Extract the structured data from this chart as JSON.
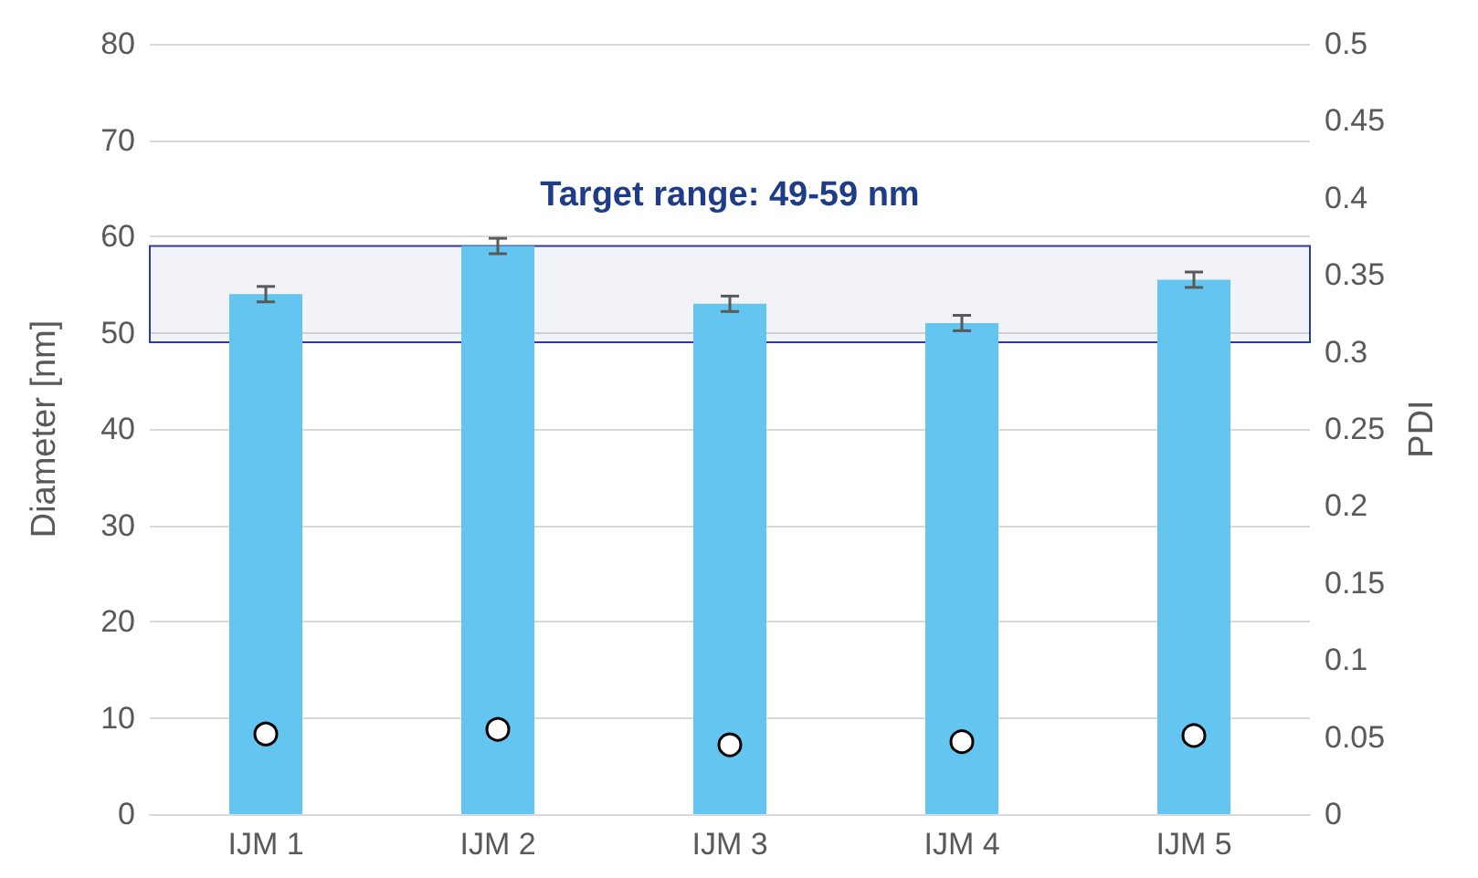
{
  "chart_data": {
    "type": "bar",
    "categories": [
      "IJM 1",
      "IJM 2",
      "IJM 3",
      "IJM 4",
      "IJM 5"
    ],
    "series": [
      {
        "color": "#63c5f0",
        "values": [
          54,
          59,
          53,
          51,
          55.5
        ],
        "errors": [
          0.8,
          0.8,
          0.8,
          0.8,
          0.8
        ]
      },
      {
        "type": "scatter",
        "axis": "y2",
        "color": "#ffffff",
        "values": [
          0.052,
          0.055,
          0.045,
          0.047,
          0.051
        ],
        "marker": "circle"
      }
    ],
    "ylabel": "Diameter [nm]",
    "y2label": "PDI",
    "ylim": [
      0,
      80
    ],
    "yticks": [
      0,
      10,
      20,
      30,
      40,
      50,
      60,
      70,
      80
    ],
    "y2lim": [
      0,
      0.5
    ],
    "y2ticks": [
      0,
      0.05,
      0.1,
      0.15,
      0.2,
      0.25,
      0.3,
      0.35,
      0.4,
      0.45,
      0.5
    ],
    "bands": [
      {
        "axis": "y",
        "from": 49,
        "to": 59,
        "label": "Target range: 49-59 nm",
        "color": "#2e3b97"
      }
    ],
    "grid": "y"
  }
}
